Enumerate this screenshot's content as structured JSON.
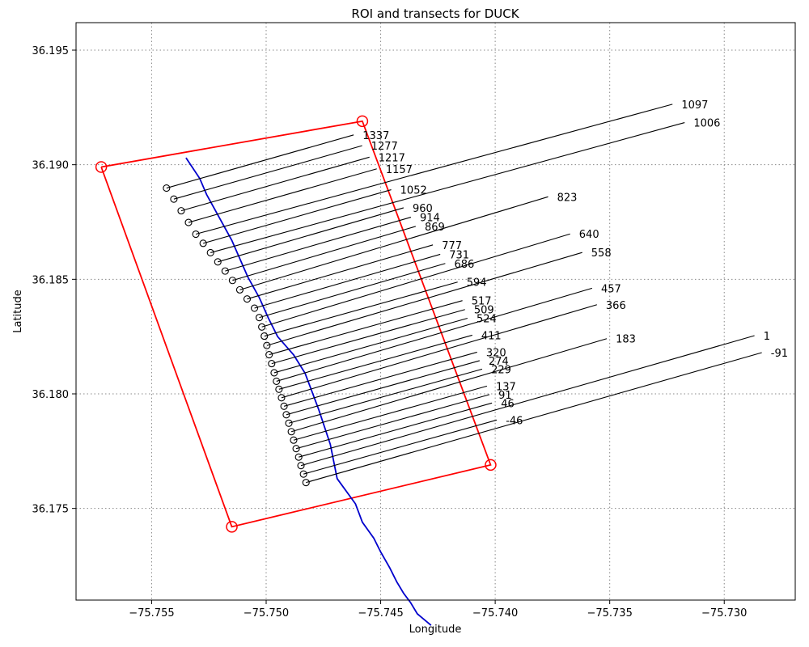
{
  "chart_data": {
    "type": "line",
    "title": "ROI and transects for DUCK",
    "xlabel": "Longitude",
    "ylabel": "Latitude",
    "xlim": [
      -75.7583,
      -75.7269
    ],
    "ylim": [
      36.171,
      36.1962
    ],
    "grid": true,
    "xticks": [
      -75.755,
      -75.75,
      -75.745,
      -75.74,
      -75.735,
      -75.73
    ],
    "yticks": [
      36.175,
      36.18,
      36.185,
      36.19,
      36.195
    ],
    "xtick_labels": [
      "−75.755",
      "−75.750",
      "−75.745",
      "−75.740",
      "−75.735",
      "−75.730"
    ],
    "ytick_labels": [
      "36.175",
      "36.180",
      "36.185",
      "36.190",
      "36.195"
    ],
    "colors": {
      "roi": "#ff0000",
      "shoreline": "#0000cc",
      "transect": "#000000"
    },
    "roi": [
      [
        -75.7572,
        36.1899
      ],
      [
        -75.7458,
        36.1919
      ],
      [
        -75.7402,
        36.1769
      ],
      [
        -75.7515,
        36.1742
      ],
      [
        -75.7572,
        36.1899
      ]
    ],
    "shoreline": [
      [
        -75.7535,
        36.1903
      ],
      [
        -75.7529,
        36.1894
      ],
      [
        -75.7526,
        36.1887
      ],
      [
        -75.7515,
        36.1867
      ],
      [
        -75.7508,
        36.1851
      ],
      [
        -75.7503,
        36.1842
      ],
      [
        -75.7499,
        36.1833
      ],
      [
        -75.7495,
        36.1825
      ],
      [
        -75.7488,
        36.1817
      ],
      [
        -75.7483,
        36.1809
      ],
      [
        -75.7477,
        36.1793
      ],
      [
        -75.7472,
        36.1778
      ],
      [
        -75.7469,
        36.1763
      ],
      [
        -75.7461,
        36.1752
      ],
      [
        -75.7458,
        36.1744
      ],
      [
        -75.7453,
        36.1737
      ],
      [
        -75.745,
        36.1731
      ],
      [
        -75.7446,
        36.1724
      ],
      [
        -75.7443,
        36.1718
      ],
      [
        -75.744,
        36.1713
      ],
      [
        -75.7437,
        36.1709
      ],
      [
        -75.7434,
        36.1704
      ],
      [
        -75.7428,
        36.1699
      ]
    ],
    "transects": [
      {
        "label": "1337",
        "origin": [
          -75.75435,
          36.18898
        ],
        "end": [
          -75.74618,
          36.1913
        ],
        "label_pos": [
          -75.746,
          36.1913
        ]
      },
      {
        "label": "1277",
        "origin": [
          -75.75403,
          36.1885
        ],
        "end": [
          -75.74581,
          36.19083
        ],
        "label_pos": [
          -75.74563,
          36.19083
        ]
      },
      {
        "label": "1217",
        "origin": [
          -75.75371,
          36.18799
        ],
        "end": [
          -75.74549,
          36.19033
        ],
        "label_pos": [
          -75.74531,
          36.19033
        ]
      },
      {
        "label": "1157",
        "origin": [
          -75.75339,
          36.18748
        ],
        "end": [
          -75.74517,
          36.18982
        ],
        "label_pos": [
          -75.74499,
          36.18982
        ]
      },
      {
        "label": "1097",
        "origin": [
          -75.75307,
          36.18697
        ],
        "end": [
          -75.73226,
          36.19264
        ],
        "label_pos": [
          -75.73208,
          36.19264
        ]
      },
      {
        "label": "1052",
        "origin": [
          -75.75275,
          36.18657
        ],
        "end": [
          -75.74454,
          36.18891
        ],
        "label_pos": [
          -75.74436,
          36.18891
        ]
      },
      {
        "label": "1006",
        "origin": [
          -75.75243,
          36.18616
        ],
        "end": [
          -75.73173,
          36.19184
        ],
        "label_pos": [
          -75.73155,
          36.19184
        ]
      },
      {
        "label": "960",
        "origin": [
          -75.75211,
          36.18576
        ],
        "end": [
          -75.744,
          36.18812
        ],
        "label_pos": [
          -75.74382,
          36.18812
        ]
      },
      {
        "label": "914",
        "origin": [
          -75.75179,
          36.18536
        ],
        "end": [
          -75.74368,
          36.18771
        ],
        "label_pos": [
          -75.7435,
          36.18771
        ]
      },
      {
        "label": "869",
        "origin": [
          -75.75147,
          36.18495
        ],
        "end": [
          -75.74347,
          36.18731
        ],
        "label_pos": [
          -75.74329,
          36.18731
        ]
      },
      {
        "label": "823",
        "origin": [
          -75.75115,
          36.18454
        ],
        "end": [
          -75.73769,
          36.1886
        ],
        "label_pos": [
          -75.73751,
          36.1886
        ]
      },
      {
        "label": "777",
        "origin": [
          -75.75083,
          36.18414
        ],
        "end": [
          -75.74272,
          36.1865
        ],
        "label_pos": [
          -75.74254,
          36.1865
        ]
      },
      {
        "label": "731",
        "origin": [
          -75.75051,
          36.18374
        ],
        "end": [
          -75.7424,
          36.18609
        ],
        "label_pos": [
          -75.74222,
          36.18609
        ]
      },
      {
        "label": "686",
        "origin": [
          -75.7503,
          36.18333
        ],
        "end": [
          -75.74218,
          36.18569
        ],
        "label_pos": [
          -75.742,
          36.18569
        ]
      },
      {
        "label": "640",
        "origin": [
          -75.75019,
          36.18292
        ],
        "end": [
          -75.73673,
          36.18698
        ],
        "label_pos": [
          -75.73655,
          36.18698
        ]
      },
      {
        "label": "594",
        "origin": [
          -75.75008,
          36.18252
        ],
        "end": [
          -75.74164,
          36.18488
        ],
        "label_pos": [
          -75.74146,
          36.18488
        ]
      },
      {
        "label": "558",
        "origin": [
          -75.74997,
          36.18211
        ],
        "end": [
          -75.7362,
          36.18617
        ],
        "label_pos": [
          -75.73602,
          36.18617
        ]
      },
      {
        "label": "517",
        "origin": [
          -75.74987,
          36.18171
        ],
        "end": [
          -75.74143,
          36.18407
        ],
        "label_pos": [
          -75.74125,
          36.18407
        ]
      },
      {
        "label": "509",
        "origin": [
          -75.74976,
          36.18132
        ],
        "end": [
          -75.74132,
          36.18368
        ],
        "label_pos": [
          -75.74114,
          36.18368
        ]
      },
      {
        "label": "524",
        "origin": [
          -75.74965,
          36.18092
        ],
        "end": [
          -75.74121,
          36.1833
        ],
        "label_pos": [
          -75.74103,
          36.1833
        ]
      },
      {
        "label": "457",
        "origin": [
          -75.74955,
          36.18055
        ],
        "end": [
          -75.73577,
          36.18461
        ],
        "label_pos": [
          -75.73559,
          36.18461
        ]
      },
      {
        "label": "411",
        "origin": [
          -75.74944,
          36.1802
        ],
        "end": [
          -75.741,
          36.18256
        ],
        "label_pos": [
          -75.74082,
          36.18256
        ]
      },
      {
        "label": "366",
        "origin": [
          -75.74933,
          36.17983
        ],
        "end": [
          -75.73556,
          36.18389
        ],
        "label_pos": [
          -75.73538,
          36.18389
        ]
      },
      {
        "label": "320",
        "origin": [
          -75.74922,
          36.17946
        ],
        "end": [
          -75.74079,
          36.18182
        ],
        "label_pos": [
          -75.74061,
          36.18182
        ]
      },
      {
        "label": "274",
        "origin": [
          -75.74912,
          36.17909
        ],
        "end": [
          -75.74068,
          36.18145
        ],
        "label_pos": [
          -75.7405,
          36.18145
        ]
      },
      {
        "label": "229",
        "origin": [
          -75.74901,
          36.17872
        ],
        "end": [
          -75.74057,
          36.18108
        ],
        "label_pos": [
          -75.74039,
          36.18108
        ]
      },
      {
        "label": "183",
        "origin": [
          -75.7489,
          36.17835
        ],
        "end": [
          -75.73513,
          36.18241
        ],
        "label_pos": [
          -75.73495,
          36.18241
        ]
      },
      {
        "label": "137",
        "origin": [
          -75.7488,
          36.17798
        ],
        "end": [
          -75.74036,
          36.18034
        ],
        "label_pos": [
          -75.74018,
          36.18034
        ]
      },
      {
        "label": "91",
        "origin": [
          -75.74869,
          36.17761
        ],
        "end": [
          -75.74025,
          36.17997
        ],
        "label_pos": [
          -75.74007,
          36.17997
        ]
      },
      {
        "label": "46",
        "origin": [
          -75.74858,
          36.17724
        ],
        "end": [
          -75.74014,
          36.1796
        ],
        "label_pos": [
          -75.73996,
          36.1796
        ]
      },
      {
        "label": "1",
        "origin": [
          -75.74848,
          36.17687
        ],
        "end": [
          -75.72868,
          36.18254
        ],
        "label_pos": [
          -75.7285,
          36.18254
        ]
      },
      {
        "label": "-46",
        "origin": [
          -75.74837,
          36.1765
        ],
        "end": [
          -75.73993,
          36.17886
        ],
        "label_pos": [
          -75.73975,
          36.17886
        ]
      },
      {
        "label": "-91",
        "origin": [
          -75.74826,
          36.17613
        ],
        "end": [
          -75.72836,
          36.1818
        ],
        "label_pos": [
          -75.72818,
          36.1818
        ]
      }
    ]
  }
}
